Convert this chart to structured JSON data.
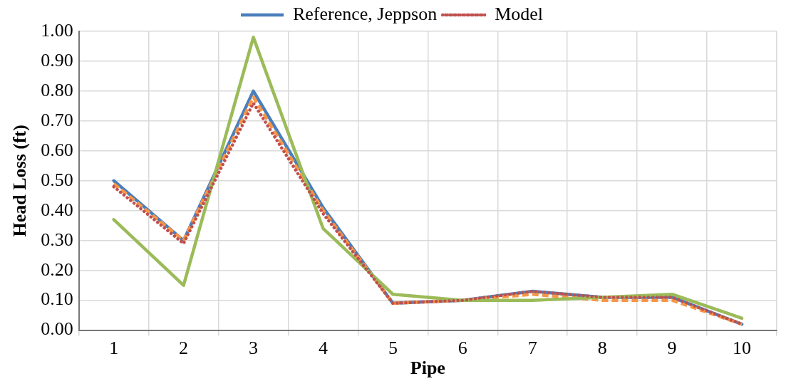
{
  "chart_data": {
    "type": "line",
    "xlabel": "Pipe",
    "ylabel": "Head Loss (ft)",
    "categories": [
      "1",
      "2",
      "3",
      "4",
      "5",
      "6",
      "7",
      "8",
      "9",
      "10"
    ],
    "series": [
      {
        "name": "Reference, Jeppson",
        "color": "#4a7ebb",
        "line_style": "solid",
        "values": [
          0.5,
          0.3,
          0.8,
          0.41,
          0.09,
          0.1,
          0.13,
          0.11,
          0.11,
          0.02
        ]
      },
      {
        "color": "#f79646",
        "line_style": "dashed",
        "values": [
          0.49,
          0.3,
          0.78,
          0.4,
          0.09,
          0.1,
          0.12,
          0.1,
          0.1,
          0.02
        ]
      },
      {
        "color": "#9bbb59",
        "line_style": "solid",
        "values": [
          0.37,
          0.15,
          0.98,
          0.34,
          0.12,
          0.1,
          0.1,
          0.11,
          0.12,
          0.04
        ]
      },
      {
        "name": "Model",
        "color": "#c0504d",
        "line_style": "dotted",
        "values": [
          0.48,
          0.29,
          0.76,
          0.39,
          0.09,
          0.1,
          0.13,
          0.11,
          0.11,
          0.02
        ]
      }
    ],
    "ylim": [
      0,
      1
    ],
    "yticks": [
      {
        "value": 0,
        "label": "0.00"
      },
      {
        "value": 0.1,
        "label": "0.10"
      },
      {
        "value": 0.2,
        "label": "0.20"
      },
      {
        "value": 0.3,
        "label": "0.30"
      },
      {
        "value": 0.4,
        "label": "0.40"
      },
      {
        "value": 0.5,
        "label": "0.50"
      },
      {
        "value": 0.6,
        "label": "0.60"
      },
      {
        "value": 0.7,
        "label": "0.70"
      },
      {
        "value": 0.8,
        "label": "0.80"
      },
      {
        "value": 0.9,
        "label": "0.90"
      },
      {
        "value": 1,
        "label": "1.00"
      }
    ],
    "grid": true,
    "legend": "top",
    "marker": "none"
  }
}
